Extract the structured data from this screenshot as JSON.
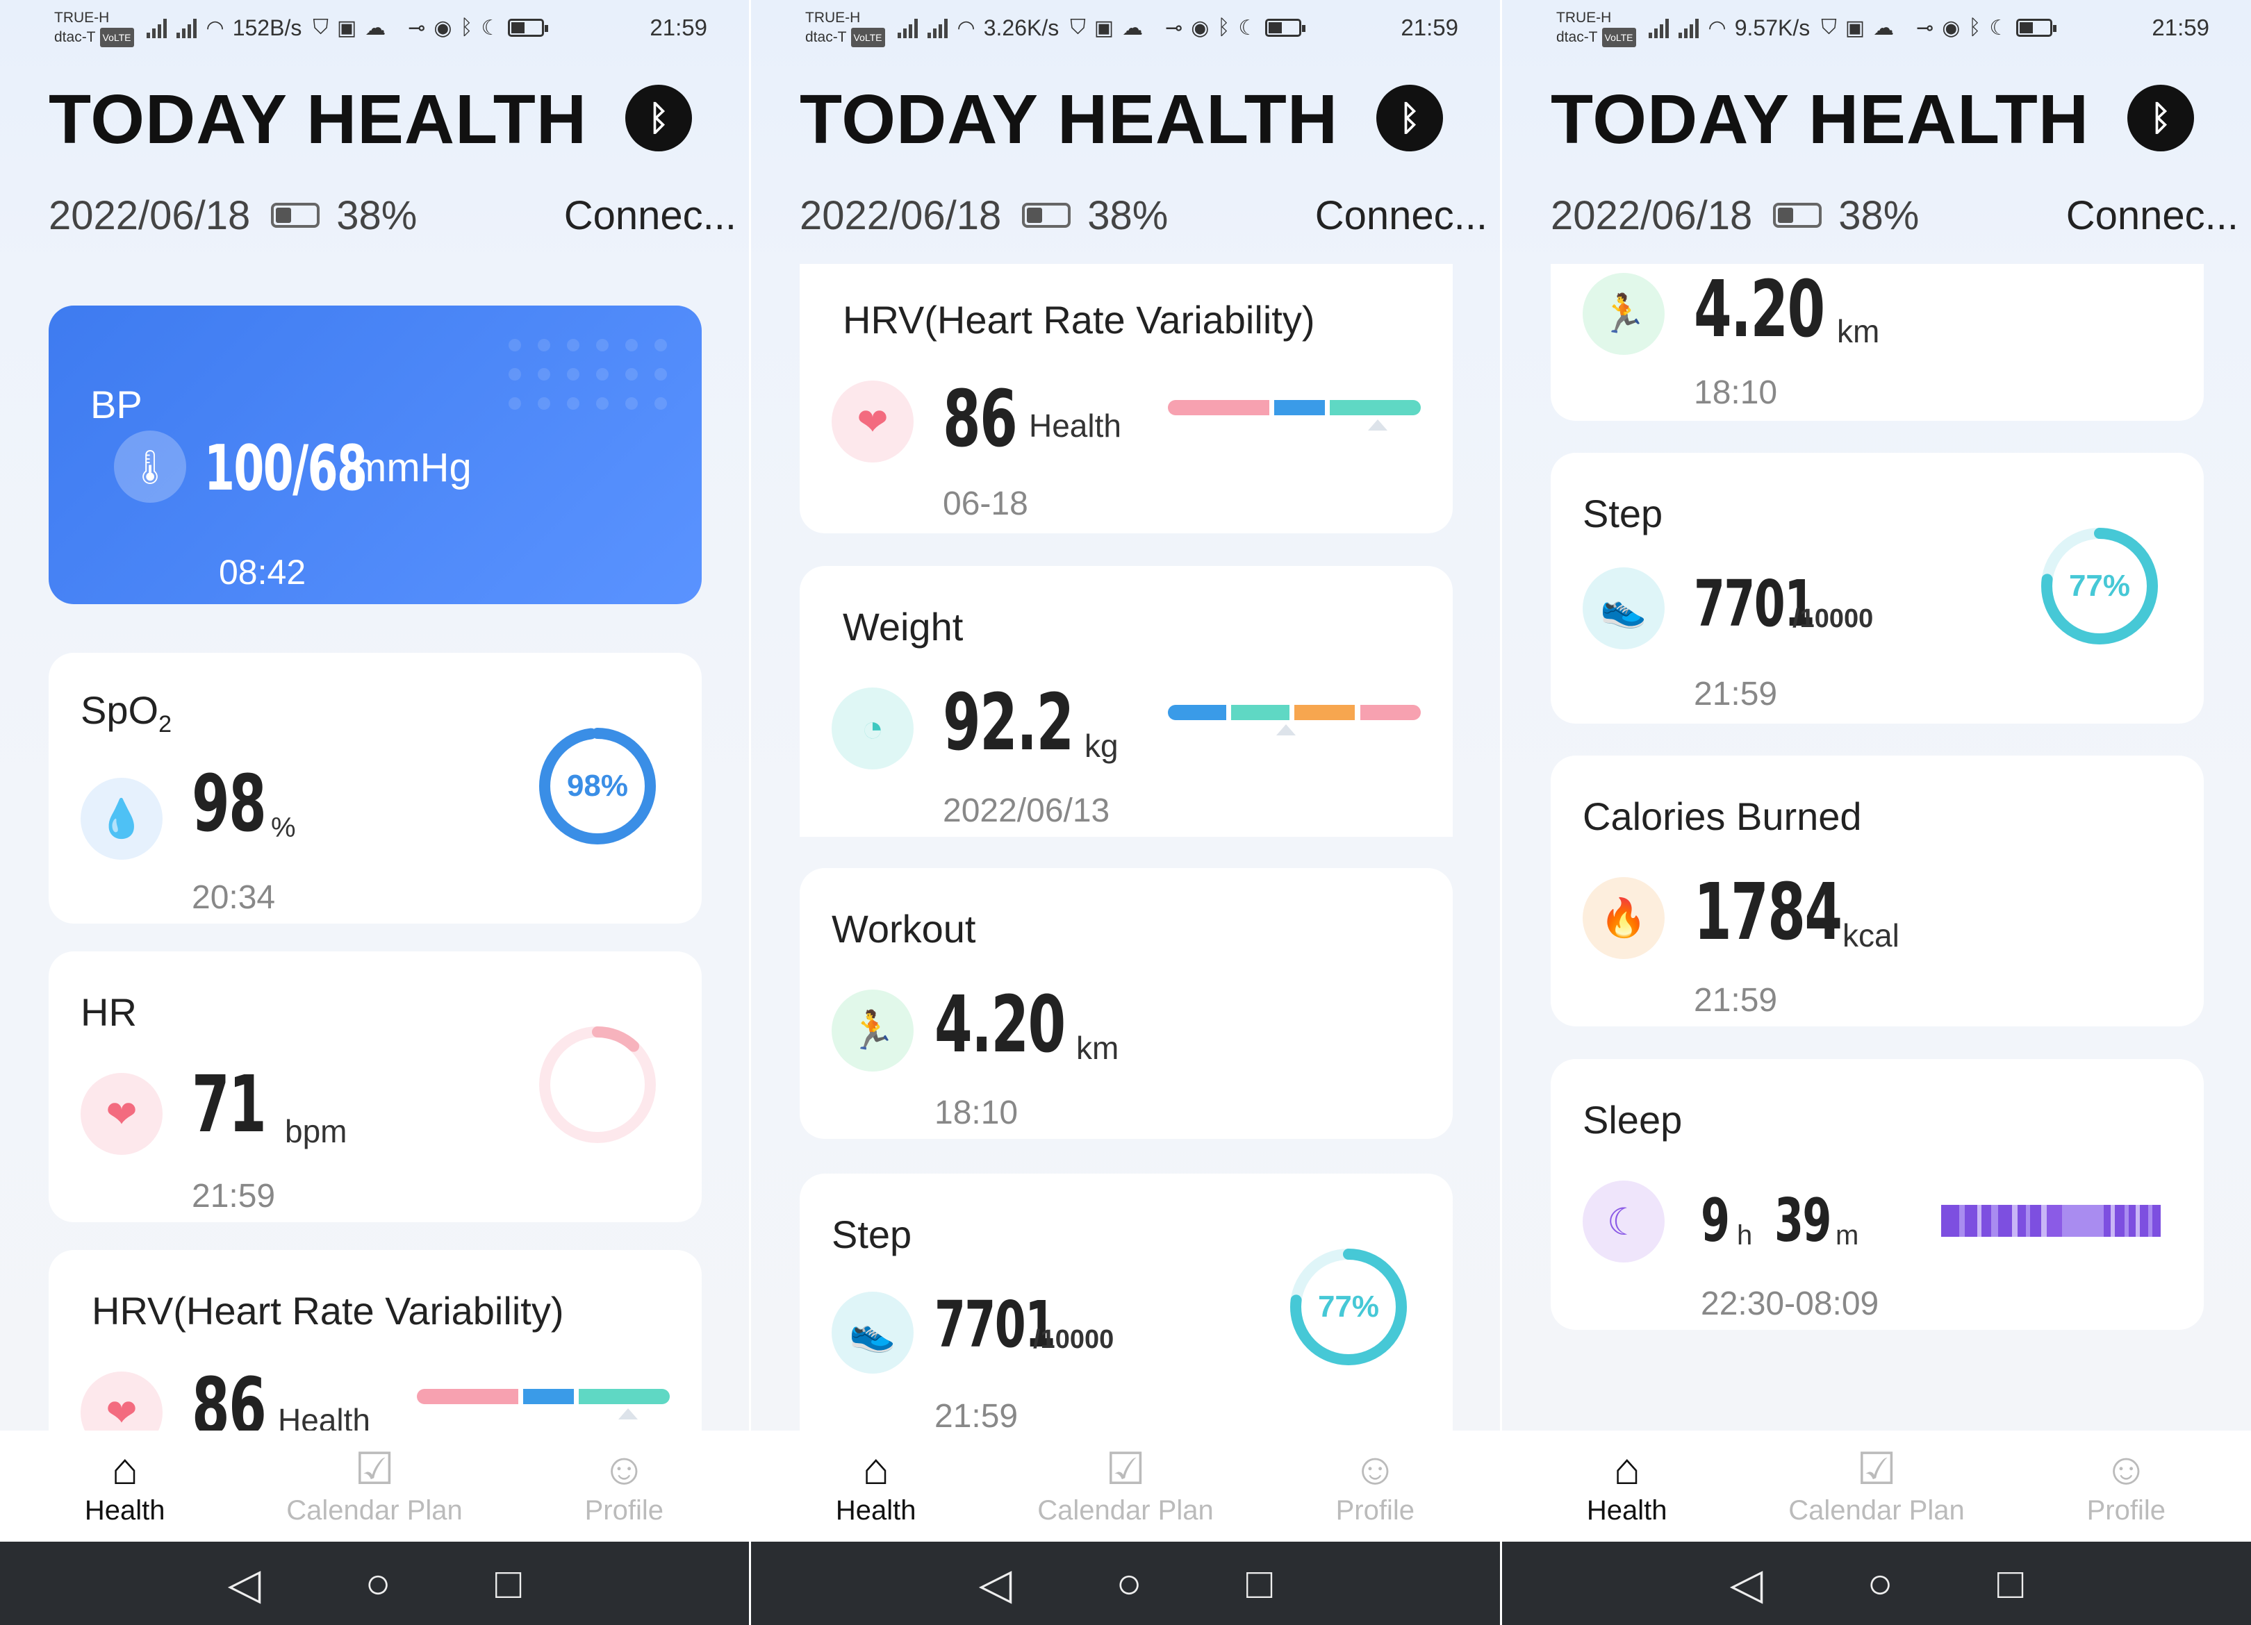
{
  "app": {
    "title": "TODAY HEALTH",
    "bluetooth_icon": "bluetooth-icon",
    "date": "2022/06/18",
    "battery": "38%",
    "connection_status": "Connec..."
  },
  "status_bars": [
    {
      "carrier_top": "TRUE-H",
      "carrier_bottom": "dtac-T",
      "volte": "VoLTE",
      "speed": "152B/s",
      "time": "21:59"
    },
    {
      "carrier_top": "TRUE-H",
      "carrier_bottom": "dtac-T",
      "volte": "VoLTE",
      "speed": "3.26K/s",
      "time": "21:59"
    },
    {
      "carrier_top": "TRUE-H",
      "carrier_bottom": "dtac-T",
      "volte": "VoLTE",
      "speed": "9.57K/s",
      "time": "21:59"
    }
  ],
  "cards": {
    "bp": {
      "title": "BP",
      "value": "100/68",
      "unit": "mmHg",
      "time": "08:42",
      "icon": "thermometer-icon"
    },
    "spo2": {
      "title": "SpO",
      "title_sub": "2",
      "value": "98",
      "unit": "%",
      "time": "20:34",
      "ring_label": "98%",
      "ring_percent": 98,
      "icon": "water-drop-icon",
      "color": "#3a8ee6"
    },
    "hr": {
      "title": "HR",
      "value": "71",
      "unit": "bpm",
      "time": "21:59",
      "ring_percent": 12,
      "icon": "heart-icon",
      "color": "#f36b7f"
    },
    "hrv": {
      "title": "HRV(Heart Rate Variability)",
      "value": "86",
      "unit": "Health",
      "time": "06-18",
      "icon": "heart-plus-icon",
      "color": "#f36b7f"
    },
    "weight": {
      "title": "Weight",
      "value": "92.2",
      "unit": "kg",
      "time": "2022/06/13",
      "icon": "scale-icon",
      "color": "#3ec8c0"
    },
    "workout": {
      "title": "Workout",
      "value": "4.20",
      "unit": "km",
      "time": "18:10",
      "icon": "running-icon",
      "color": "#3cd07a"
    },
    "step": {
      "title": "Step",
      "value": "7701",
      "goal": "/10000",
      "time": "21:59",
      "ring_label": "77%",
      "ring_percent": 77,
      "icon": "shoe-icon",
      "color": "#46c8d6"
    },
    "calories": {
      "title": "Calories Burned",
      "value": "1784",
      "unit": "kcal",
      "time": "21:59",
      "icon": "flame-icon",
      "color": "#f28a3a"
    },
    "sleep": {
      "title": "Sleep",
      "hours": "9",
      "h_unit": "h",
      "minutes": "39",
      "m_unit": "m",
      "time": "22:30-08:09",
      "icon": "moon-icon",
      "color": "#8b5be6"
    }
  },
  "tabs": [
    {
      "label": "Health",
      "icon": "home-icon",
      "active": true
    },
    {
      "label": "Calendar Plan",
      "icon": "calendar-check-icon",
      "active": false
    },
    {
      "label": "Profile",
      "icon": "profile-icon",
      "active": false
    }
  ],
  "nav": {
    "back_icon": "back-triangle-icon",
    "home_icon": "home-circle-icon",
    "recent_icon": "recent-square-icon"
  }
}
